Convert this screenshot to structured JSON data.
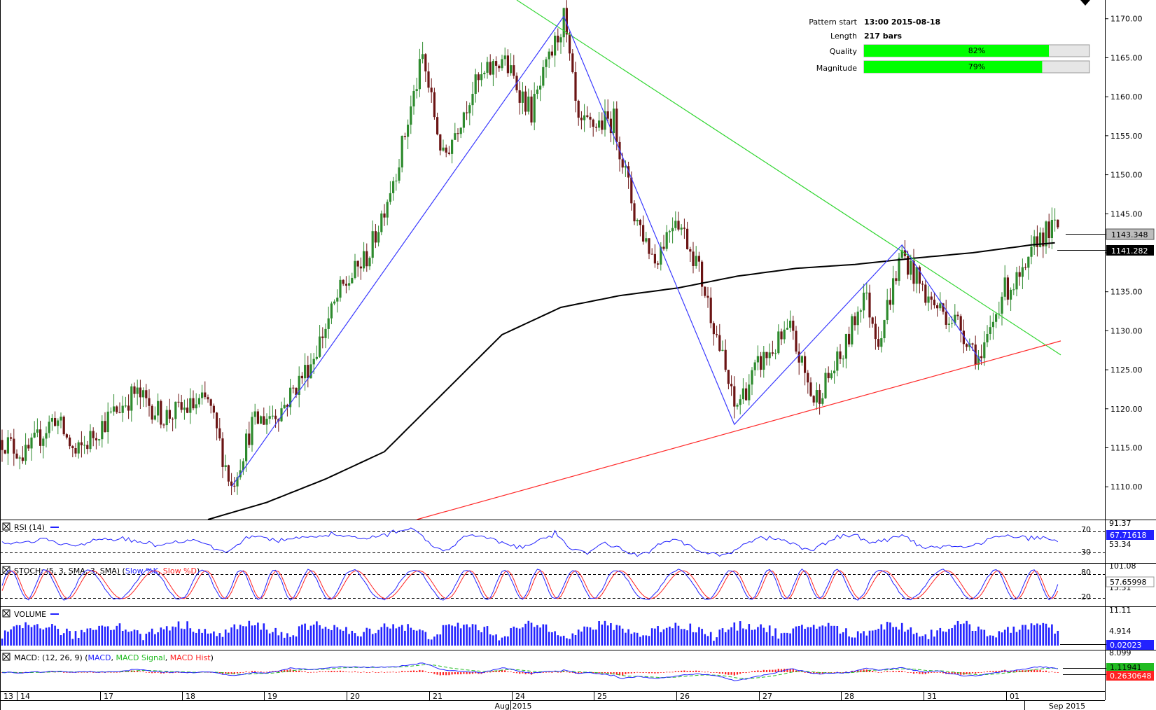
{
  "pattern_info": {
    "start_label": "Pattern start",
    "start_value": "13:00 2015-08-18",
    "length_label": "Length",
    "length_value": "217 bars",
    "quality_label": "Quality",
    "quality_value": "82%",
    "quality_fraction": 0.82,
    "magnitude_label": "Magnitude",
    "magnitude_value": "79%",
    "magnitude_fraction": 0.79
  },
  "price_tags": {
    "last": "1143.348",
    "ma": "1141.282"
  },
  "indicators": {
    "rsi": {
      "label": "RSI (14)",
      "ticks": [
        "91.37",
        "53.34"
      ],
      "levels": [
        "70",
        "30"
      ],
      "value": "67.71618"
    },
    "stoch": {
      "label_prefix": "STOCH: (5, 3, SMA, 3, SMA) (",
      "k_label": "Slow %K",
      "sep": ", ",
      "d_label": "Slow %D",
      "label_suffix": ")",
      "ticks": [
        "101.08",
        "15.51"
      ],
      "levels": [
        "80",
        "20"
      ],
      "value": "57.65998"
    },
    "volume": {
      "label": "VOLUME",
      "ticks": [
        "11.11",
        "4.914"
      ],
      "value": "0.02023"
    },
    "macd": {
      "label_prefix": "MACD: (12, 26, 9) (",
      "macd_label": "MACD",
      "sep1": ", ",
      "signal_label": "MACD Signal",
      "sep2": ", ",
      "hist_label": "MACD Hist",
      "label_suffix": ")",
      "ticks": [
        "8.099"
      ],
      "value_top": "1.11941",
      "value": "0.2630648"
    }
  },
  "x_axis": {
    "day_labels": [
      "13",
      "14",
      "17",
      "18",
      "19",
      "20",
      "21",
      "24",
      "25",
      "26",
      "27",
      "28",
      "31",
      "01"
    ],
    "month_labels": [
      "Aug 2015",
      "Sep 2015"
    ]
  },
  "colors": {
    "up": "#2d8a2d",
    "down": "#6b1414",
    "pattern": "#3a3aff",
    "resistance": "#33d633",
    "support": "#ff2a2a",
    "ma": "#000000",
    "quality_bar": "#00ff00",
    "k_line": "#2222ff",
    "d_line": "#ff2222"
  },
  "chart_data": {
    "type": "candlestick",
    "y_ticks": [
      1110,
      1115,
      1120,
      1125,
      1130,
      1135,
      1140,
      1145,
      1150,
      1155,
      1160,
      1165,
      1170
    ],
    "ylim": [
      1105.8,
      1172.4
    ],
    "pattern_points": [
      {
        "bar": 78,
        "price": 1110.0
      },
      {
        "bar": 191,
        "price": 1170.3
      },
      {
        "bar": 249,
        "price": 1118.0
      },
      {
        "bar": 306,
        "price": 1141.0
      },
      {
        "bar": 333,
        "price": 1126.0
      }
    ],
    "resistance_line": [
      {
        "bar": 175,
        "price": 1172.4
      },
      {
        "bar": 360,
        "price": 1126.9
      }
    ],
    "support_line": [
      {
        "bar": 141,
        "price": 1105.8
      },
      {
        "bar": 360,
        "price": 1128.7
      }
    ],
    "ma_anchors": [
      [
        70,
        1105.8
      ],
      [
        90,
        1108.0
      ],
      [
        110,
        1111.0
      ],
      [
        130,
        1114.5
      ],
      [
        150,
        1122.0
      ],
      [
        170,
        1129.5
      ],
      [
        190,
        1133.0
      ],
      [
        210,
        1134.5
      ],
      [
        230,
        1135.5
      ],
      [
        250,
        1137.0
      ],
      [
        270,
        1138.0
      ],
      [
        290,
        1138.5
      ],
      [
        310,
        1139.3
      ],
      [
        330,
        1140.0
      ],
      [
        350,
        1141.0
      ],
      [
        358,
        1141.282
      ]
    ],
    "last_price": 1143.348,
    "ma_value": 1141.282
  }
}
